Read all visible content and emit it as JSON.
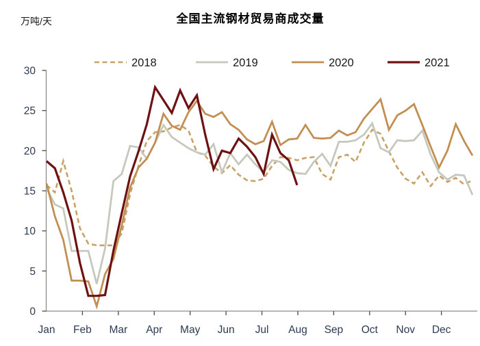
{
  "header": {
    "title": "全国主流钢材贸易商成交量",
    "unit_label": "万吨/天"
  },
  "chart_data": {
    "type": "line",
    "title": "全国主流钢材贸易商成交量",
    "ylabel": "万吨/天",
    "xlabel": "",
    "x_unit": "week-of-year",
    "x_tick_labels": [
      "Jan",
      "Feb",
      "Mar",
      "Apr",
      "May",
      "Jun",
      "Jul",
      "Aug",
      "Sep",
      "Oct",
      "Nov",
      "Dec"
    ],
    "y_ticks": [
      0,
      5,
      10,
      15,
      20,
      25,
      30
    ],
    "ylim": [
      0,
      30
    ],
    "grid": false,
    "legend_position": "top",
    "series": [
      {
        "name": "2018",
        "style": "dashed",
        "color": "#C9A164",
        "values": [
          15.7,
          14.8,
          18.7,
          15.0,
          10.3,
          8.4,
          8.2,
          8.2,
          8.2,
          9.7,
          14.6,
          18.1,
          21.2,
          22.3,
          22.4,
          22.9,
          23.2,
          22.5,
          19.8,
          19.4,
          18.0,
          17.2,
          18.2,
          17.0,
          16.3,
          16.2,
          16.5,
          18.1,
          19.2,
          19.1,
          18.8,
          19.1,
          19.2,
          17.1,
          16.4,
          19.2,
          19.5,
          18.6,
          21.0,
          22.6,
          22.1,
          19.9,
          17.9,
          16.5,
          15.9,
          17.3,
          15.6,
          16.9,
          16.1,
          16.6,
          15.8,
          16.3
        ]
      },
      {
        "name": "2019",
        "style": "solid",
        "color": "#C5C9BD",
        "values": [
          15.3,
          13.3,
          12.8,
          7.5,
          7.5,
          7.5,
          3.4,
          7.8,
          16.2,
          17.1,
          20.6,
          20.4,
          19.0,
          21.0,
          23.2,
          21.7,
          21.0,
          20.3,
          19.8,
          19.5,
          20.8,
          17.3,
          19.7,
          18.3,
          19.5,
          18.3,
          17.3,
          18.8,
          18.6,
          17.6,
          17.2,
          17.1,
          18.6,
          19.6,
          18.1,
          21.1,
          21.1,
          21.3,
          22.0,
          23.4,
          20.3,
          19.8,
          21.3,
          21.2,
          21.3,
          22.5,
          19.5,
          17.3,
          16.4,
          17.0,
          16.9,
          14.5
        ]
      },
      {
        "name": "2020",
        "style": "solid",
        "color": "#C28E52",
        "values": [
          15.9,
          11.8,
          8.9,
          3.8,
          3.8,
          3.7,
          0.6,
          4.6,
          6.5,
          10.7,
          15.4,
          17.9,
          19.0,
          21.0,
          24.6,
          23.1,
          22.6,
          24.8,
          26.2,
          24.6,
          24.2,
          24.8,
          23.3,
          22.6,
          21.4,
          20.8,
          21.2,
          23.6,
          20.7,
          21.4,
          21.5,
          23.2,
          21.6,
          21.5,
          21.6,
          22.5,
          21.9,
          22.3,
          24.0,
          25.2,
          26.4,
          22.6,
          24.4,
          25.0,
          25.8,
          23.2,
          20.5,
          17.9,
          20.0,
          23.3,
          21.2,
          19.4
        ]
      },
      {
        "name": "2021",
        "style": "solid",
        "color": "#6E1113",
        "values": [
          18.7,
          17.8,
          14.8,
          11.3,
          6.0,
          1.9,
          1.9,
          2.0,
          7.5,
          12.2,
          16.8,
          19.9,
          23.3,
          27.9,
          26.3,
          24.7,
          27.5,
          25.3,
          26.9,
          22.0,
          17.7,
          20.0,
          19.7,
          21.5,
          20.5,
          19.2,
          17.1,
          22.0,
          19.7,
          18.8,
          15.7
        ]
      }
    ]
  },
  "colors": {
    "axis": "#8C8C8C",
    "tick_label": "#2C3A52",
    "legend_text": "#1A1A1A",
    "background": "#FFFFFF"
  }
}
